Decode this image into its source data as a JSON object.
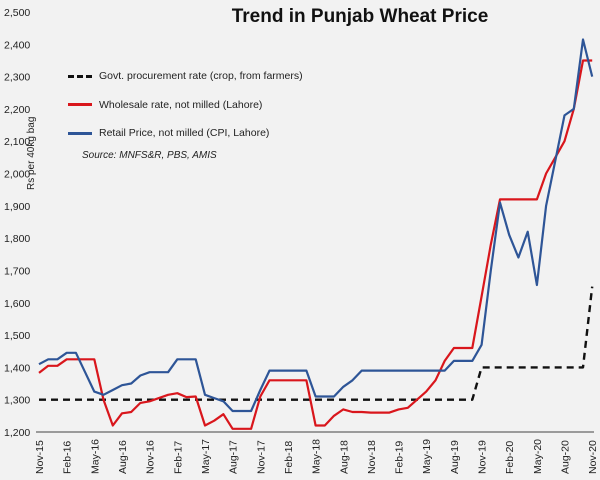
{
  "chart_data": {
    "type": "line",
    "title": "Trend in Punjab Wheat Price",
    "xlabel": "",
    "ylabel": "Rs per 40kg bag",
    "ylim": [
      1200,
      2500
    ],
    "yticks": [
      1200,
      1300,
      1400,
      1500,
      1600,
      1700,
      1800,
      1900,
      2000,
      2100,
      2200,
      2300,
      2400,
      2500
    ],
    "ytick_labels": [
      "1,200",
      "1,300",
      "1,400",
      "1,500",
      "1,600",
      "1,700",
      "1,800",
      "1,900",
      "2,000",
      "2,100",
      "2,200",
      "2,300",
      "2,400",
      "2,500"
    ],
    "xtick_labels": [
      "Nov-15",
      "Feb-16",
      "May-16",
      "Aug-16",
      "Nov-16",
      "Feb-17",
      "May-17",
      "Aug-17",
      "Nov-17",
      "Feb-18",
      "May-18",
      "Aug-18",
      "Nov-18",
      "Feb-19",
      "May-19",
      "Aug-19",
      "Nov-19",
      "Feb-20",
      "May-20",
      "Aug-20",
      "Nov-20"
    ],
    "x_range": "Nov-15 to Nov-20 (monthly, 61 points)",
    "grid": false,
    "legend_position": "upper left",
    "annotation": "Source: MNFS&R, PBS, AMIS",
    "series": [
      {
        "name": "Govt. procurement rate (crop, from farmers)",
        "color": "#111111",
        "style": "dashed",
        "values": [
          1300,
          1300,
          1300,
          1300,
          1300,
          1300,
          1300,
          1300,
          1300,
          1300,
          1300,
          1300,
          1300,
          1300,
          1300,
          1300,
          1300,
          1300,
          1300,
          1300,
          1300,
          1300,
          1300,
          1300,
          1300,
          1300,
          1300,
          1300,
          1300,
          1300,
          1300,
          1300,
          1300,
          1300,
          1300,
          1300,
          1300,
          1300,
          1300,
          1300,
          1300,
          1300,
          1300,
          1300,
          1300,
          1300,
          1300,
          1300,
          1400,
          1400,
          1400,
          1400,
          1400,
          1400,
          1400,
          1400,
          1400,
          1400,
          1400,
          1400,
          1650
        ]
      },
      {
        "name": "Wholesale rate, not milled (Lahore)",
        "color": "#d9161c",
        "style": "solid",
        "values": [
          1383,
          1405,
          1405,
          1425,
          1425,
          1425,
          1425,
          1300,
          1220,
          1258,
          1262,
          1290,
          1295,
          1305,
          1315,
          1320,
          1308,
          1310,
          1220,
          1235,
          1255,
          1210,
          1210,
          1210,
          1310,
          1360,
          1360,
          1360,
          1360,
          1360,
          1220,
          1220,
          1250,
          1270,
          1262,
          1262,
          1260,
          1260,
          1260,
          1270,
          1275,
          1300,
          1325,
          1360,
          1420,
          1460,
          1460,
          1460,
          1620,
          1780,
          1920,
          1920,
          1920,
          1920,
          1920,
          2000,
          2050,
          2100,
          2200,
          2350,
          2350
        ]
      },
      {
        "name": "Retail Price, not milled (CPI, Lahore)",
        "color": "#2e5597",
        "style": "solid",
        "values": [
          1410,
          1425,
          1425,
          1445,
          1445,
          1385,
          1325,
          1315,
          1330,
          1345,
          1350,
          1375,
          1385,
          1385,
          1385,
          1425,
          1425,
          1425,
          1315,
          1305,
          1295,
          1265,
          1265,
          1265,
          1330,
          1390,
          1390,
          1390,
          1390,
          1390,
          1310,
          1310,
          1310,
          1340,
          1360,
          1390,
          1390,
          1390,
          1390,
          1390,
          1390,
          1390,
          1390,
          1390,
          1390,
          1420,
          1420,
          1420,
          1470,
          1700,
          1910,
          1810,
          1740,
          1820,
          1655,
          1900,
          2040,
          2180,
          2200,
          2415,
          2300
        ]
      }
    ]
  },
  "legend": {
    "govt": "Govt. procurement rate (crop, from farmers)",
    "wholesale": "Wholesale rate, not milled (Lahore)",
    "retail": "Retail Price, not milled (CPI, Lahore)",
    "source": "Source: MNFS&R, PBS, AMIS"
  }
}
